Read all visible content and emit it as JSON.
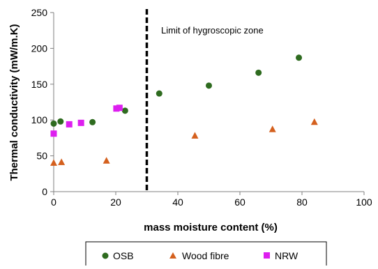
{
  "chart_data": {
    "type": "scatter",
    "title": "",
    "xlabel": "mass moisture content (%)",
    "ylabel": "Thermal conductivity (mW/m.K)",
    "xlim": [
      0,
      100
    ],
    "ylim": [
      0,
      250
    ],
    "xticks": [
      "0",
      "20",
      "40",
      "60",
      "80",
      "100"
    ],
    "yticks": [
      "0",
      "50",
      "100",
      "150",
      "200",
      "250"
    ],
    "grid": false,
    "legend_placement": "bottom",
    "series": [
      {
        "name": "OSB",
        "marker": "circle",
        "color": "#2e6b1f",
        "x": [
          0,
          2.2,
          12.5,
          23,
          34,
          50,
          66,
          79
        ],
        "y": [
          95,
          98,
          97,
          113,
          137,
          148,
          166,
          187
        ]
      },
      {
        "name": "Wood fibre",
        "marker": "triangle",
        "color": "#d4601e",
        "x": [
          0,
          2.5,
          17,
          45.5,
          70.5,
          84
        ],
        "y": [
          40,
          41,
          43,
          78,
          87,
          97
        ]
      },
      {
        "name": "NRW",
        "marker": "square",
        "color": "#dd1fef",
        "x": [
          0,
          5,
          8.8,
          20.2,
          21.2
        ],
        "y": [
          81,
          94,
          96,
          116,
          117
        ]
      }
    ],
    "vertical_line": {
      "x": 30,
      "style": "dashed",
      "color": "#000000"
    },
    "annotation": "Limit of hygroscopic zone"
  }
}
